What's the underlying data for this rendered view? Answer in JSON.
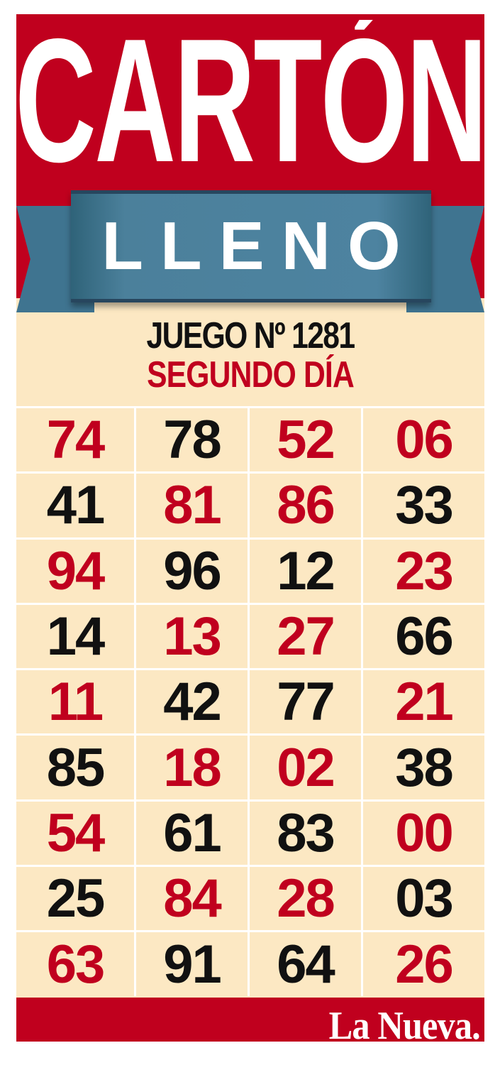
{
  "title": "CARTÓN",
  "ribbon": "LLENO",
  "game_line": "JUEGO Nº 1281",
  "day_line": "SEGUNDO DÍA",
  "colors": {
    "red": "#c0001e",
    "black": "#111111",
    "cream": "#fce8c3",
    "ribbon": "#4b809b"
  },
  "grid": [
    [
      {
        "n": "74",
        "c": "red"
      },
      {
        "n": "78",
        "c": "black"
      },
      {
        "n": "52",
        "c": "red"
      },
      {
        "n": "06",
        "c": "red"
      }
    ],
    [
      {
        "n": "41",
        "c": "black"
      },
      {
        "n": "81",
        "c": "red"
      },
      {
        "n": "86",
        "c": "red"
      },
      {
        "n": "33",
        "c": "black"
      }
    ],
    [
      {
        "n": "94",
        "c": "red"
      },
      {
        "n": "96",
        "c": "black"
      },
      {
        "n": "12",
        "c": "black"
      },
      {
        "n": "23",
        "c": "red"
      }
    ],
    [
      {
        "n": "14",
        "c": "black"
      },
      {
        "n": "13",
        "c": "red"
      },
      {
        "n": "27",
        "c": "red"
      },
      {
        "n": "66",
        "c": "black"
      }
    ],
    [
      {
        "n": "11",
        "c": "red"
      },
      {
        "n": "42",
        "c": "black"
      },
      {
        "n": "77",
        "c": "black"
      },
      {
        "n": "21",
        "c": "red"
      }
    ],
    [
      {
        "n": "85",
        "c": "black"
      },
      {
        "n": "18",
        "c": "red"
      },
      {
        "n": "02",
        "c": "red"
      },
      {
        "n": "38",
        "c": "black"
      }
    ],
    [
      {
        "n": "54",
        "c": "red"
      },
      {
        "n": "61",
        "c": "black"
      },
      {
        "n": "83",
        "c": "black"
      },
      {
        "n": "00",
        "c": "red"
      }
    ],
    [
      {
        "n": "25",
        "c": "black"
      },
      {
        "n": "84",
        "c": "red"
      },
      {
        "n": "28",
        "c": "red"
      },
      {
        "n": "03",
        "c": "black"
      }
    ],
    [
      {
        "n": "63",
        "c": "red"
      },
      {
        "n": "91",
        "c": "black"
      },
      {
        "n": "64",
        "c": "black"
      },
      {
        "n": "26",
        "c": "red"
      }
    ]
  ],
  "footer": {
    "logo": "La Nueva."
  }
}
